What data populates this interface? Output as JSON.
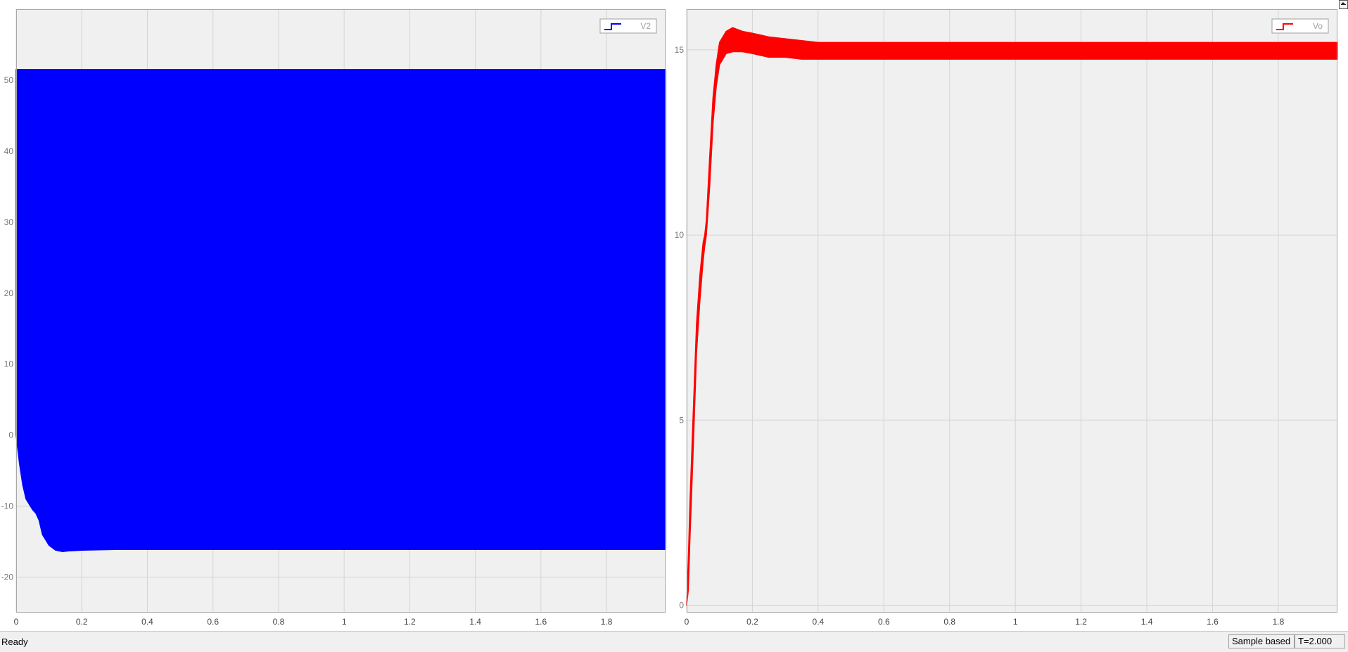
{
  "chart_data": [
    {
      "type": "line",
      "title": "",
      "xlabel": "",
      "ylabel": "",
      "xlim": [
        0,
        1.98
      ],
      "ylim": [
        -25,
        60
      ],
      "x_ticks": [
        0,
        0.2,
        0.4,
        0.6,
        0.8,
        1,
        1.2,
        1.4,
        1.6,
        1.8
      ],
      "y_ticks": [
        -20,
        -10,
        0,
        10,
        20,
        30,
        40,
        50
      ],
      "grid": true,
      "legend": {
        "position": "top-right"
      },
      "series": [
        {
          "name": "V2",
          "color": "#0000ff",
          "kind": "band",
          "x": [
            0,
            0.01,
            0.02,
            0.03,
            0.05,
            0.06,
            0.07,
            0.08,
            0.1,
            0.12,
            0.14,
            0.16,
            0.2,
            0.3,
            1.0,
            1.98
          ],
          "upper": [
            51.5,
            51.5,
            51.5,
            51.5,
            51.5,
            51.5,
            51.5,
            51.5,
            51.5,
            51.5,
            51.5,
            51.5,
            51.5,
            51.5,
            51.5,
            51.5
          ],
          "lower": [
            0,
            -4,
            -7,
            -9,
            -10.5,
            -11,
            -12,
            -14,
            -15.5,
            -16.2,
            -16.4,
            -16.3,
            -16.2,
            -16.1,
            -16.1,
            -16.1
          ]
        }
      ]
    },
    {
      "type": "line",
      "title": "",
      "xlabel": "",
      "ylabel": "",
      "xlim": [
        0,
        1.98
      ],
      "ylim": [
        -0.2,
        16.1
      ],
      "x_ticks": [
        0,
        0.2,
        0.4,
        0.6,
        0.8,
        1,
        1.2,
        1.4,
        1.6,
        1.8
      ],
      "y_ticks": [
        0,
        5,
        10,
        15
      ],
      "grid": true,
      "legend": {
        "position": "top-right"
      },
      "series": [
        {
          "name": "Vo",
          "color": "#ff0000",
          "kind": "band",
          "x": [
            0,
            0.005,
            0.01,
            0.02,
            0.03,
            0.04,
            0.05,
            0.055,
            0.06,
            0.07,
            0.08,
            0.09,
            0.1,
            0.12,
            0.14,
            0.17,
            0.2,
            0.25,
            0.3,
            0.35,
            0.4,
            1.0,
            1.98
          ],
          "upper": [
            0,
            1.2,
            2.8,
            5.2,
            7.6,
            8.9,
            9.8,
            10.0,
            10.4,
            12.1,
            13.7,
            14.6,
            15.2,
            15.5,
            15.6,
            15.5,
            15.45,
            15.35,
            15.3,
            15.25,
            15.2,
            15.2,
            15.2
          ],
          "lower": [
            0,
            0.4,
            1.8,
            4.2,
            6.8,
            8.2,
            9.3,
            9.7,
            10.0,
            11.3,
            13.0,
            14.0,
            14.6,
            14.9,
            14.95,
            14.95,
            14.9,
            14.8,
            14.8,
            14.75,
            14.75,
            14.75,
            14.75
          ]
        }
      ]
    }
  ],
  "corner_icon": "maximize-icon",
  "status": {
    "ready": "Ready",
    "mode": "Sample based",
    "time": "T=2.000"
  }
}
